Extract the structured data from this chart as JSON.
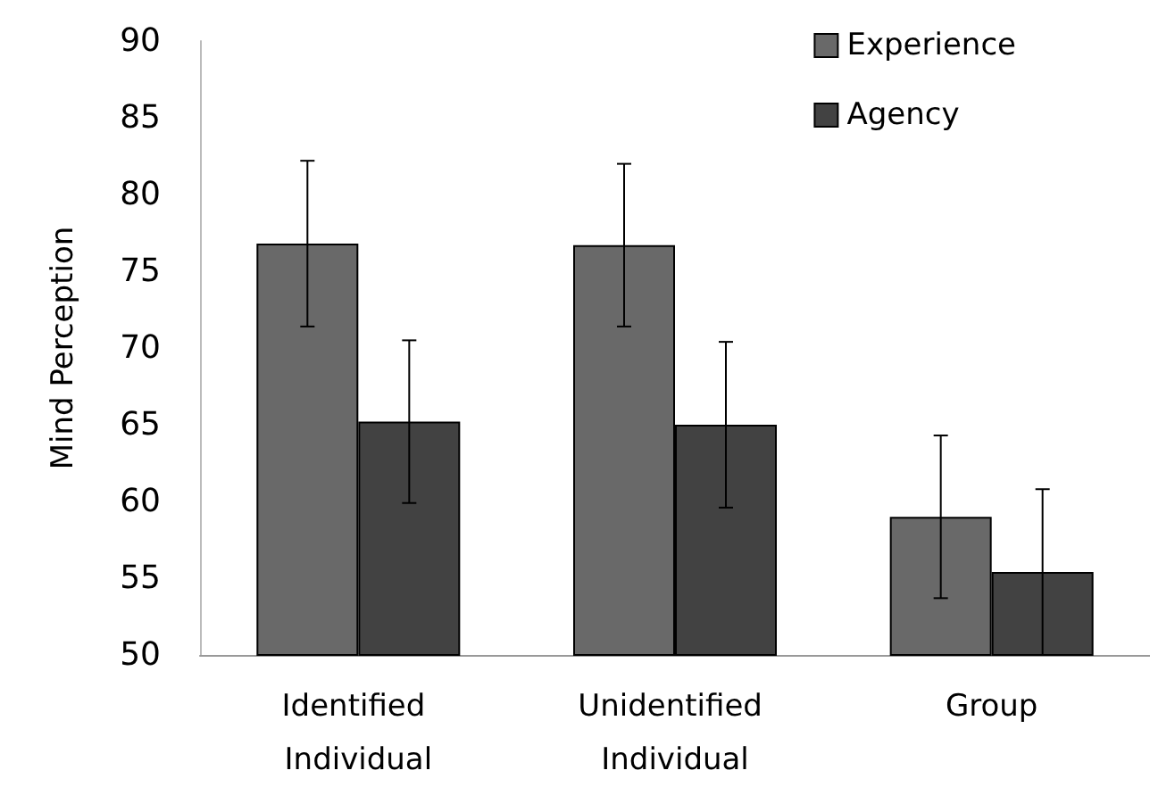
{
  "chart_data": {
    "type": "bar",
    "ylabel": "Mind Perception",
    "categories": [
      "Identified Individual",
      "Unidentified Individual",
      "Group"
    ],
    "series": [
      {
        "name": "Experience",
        "color": "#696969",
        "values": [
          76.8,
          76.7,
          59.0
        ],
        "errors": [
          5.4,
          5.3,
          5.3
        ]
      },
      {
        "name": "Agency",
        "color": "#424242",
        "values": [
          65.2,
          65.0,
          55.4
        ],
        "errors": [
          5.3,
          5.4,
          5.4
        ]
      }
    ],
    "ylim": [
      50,
      90
    ],
    "yticks": [
      50,
      55,
      60,
      65,
      70,
      75,
      80,
      85,
      90
    ],
    "grid": false,
    "legend": "top right"
  }
}
